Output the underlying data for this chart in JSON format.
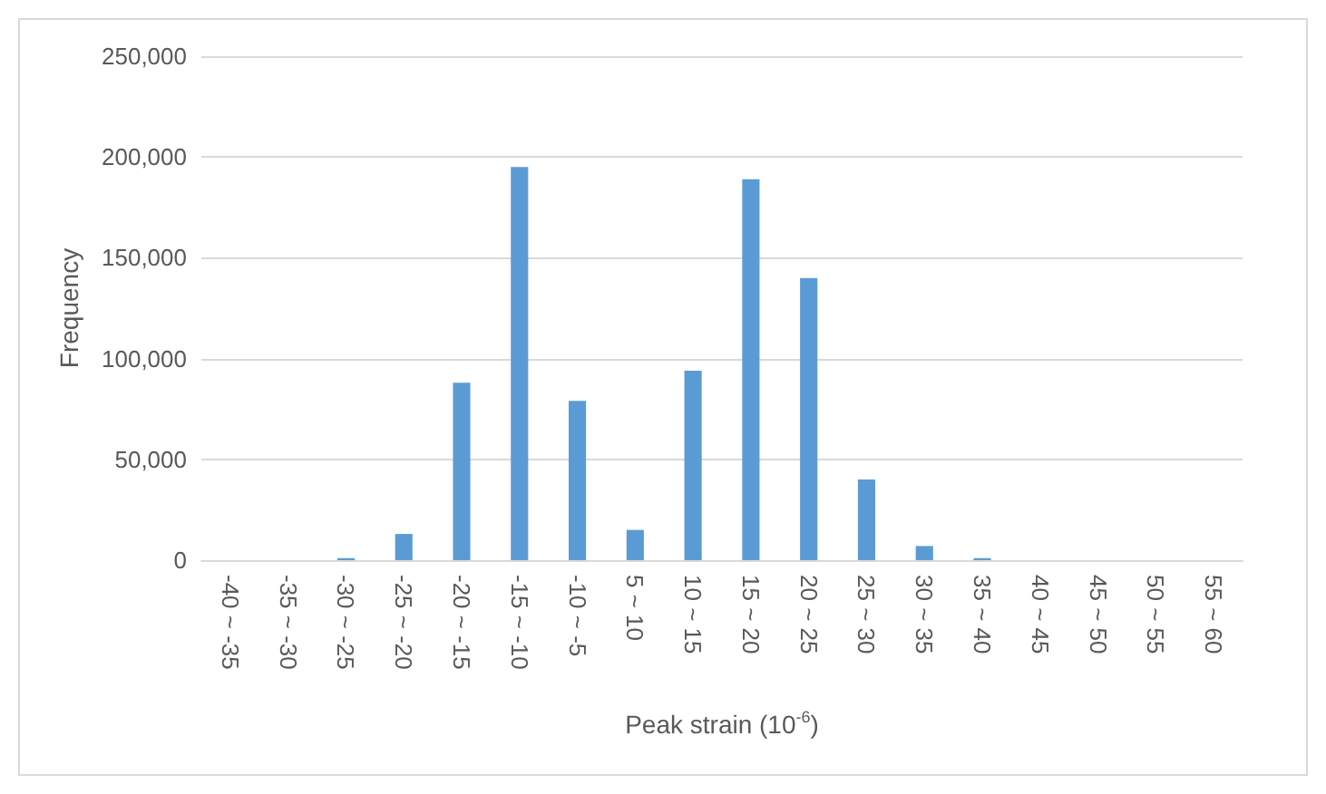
{
  "chart_data": {
    "type": "bar",
    "xlabel": "Peak strain (10$^{-6}$)",
    "ylabel": "Frequency",
    "categories": [
      "-40 ~ -35",
      "-35 ~ -30",
      "-30 ~ -25",
      "-25 ~ -20",
      "-20 ~ -15",
      "-15 ~ -10",
      "-10 ~ -5",
      "5 ~ 10",
      "10 ~ 15",
      "15 ~ 20",
      "20 ~ 25",
      "25 ~ 30",
      "30 ~ 35",
      "35 ~ 40",
      "40 ~ 45",
      "45 ~ 50",
      "50 ~ 55",
      "55 ~ 60"
    ],
    "values": [
      0,
      0,
      1000,
      13000,
      88000,
      195000,
      79000,
      15000,
      94000,
      189000,
      140000,
      40000,
      7000,
      1000,
      0,
      0,
      0,
      0
    ],
    "color": "#5b9bd5",
    "ylim": [
      0,
      250000
    ],
    "yticks": [
      {
        "value": 0,
        "label": "0"
      },
      {
        "value": 50000,
        "label": "50,000"
      },
      {
        "value": 100000,
        "label": "100,000"
      },
      {
        "value": 150000,
        "label": "150,000"
      },
      {
        "value": 200000,
        "label": "200,000"
      },
      {
        "value": 250000,
        "label": "250,000"
      }
    ],
    "grid": "y"
  }
}
